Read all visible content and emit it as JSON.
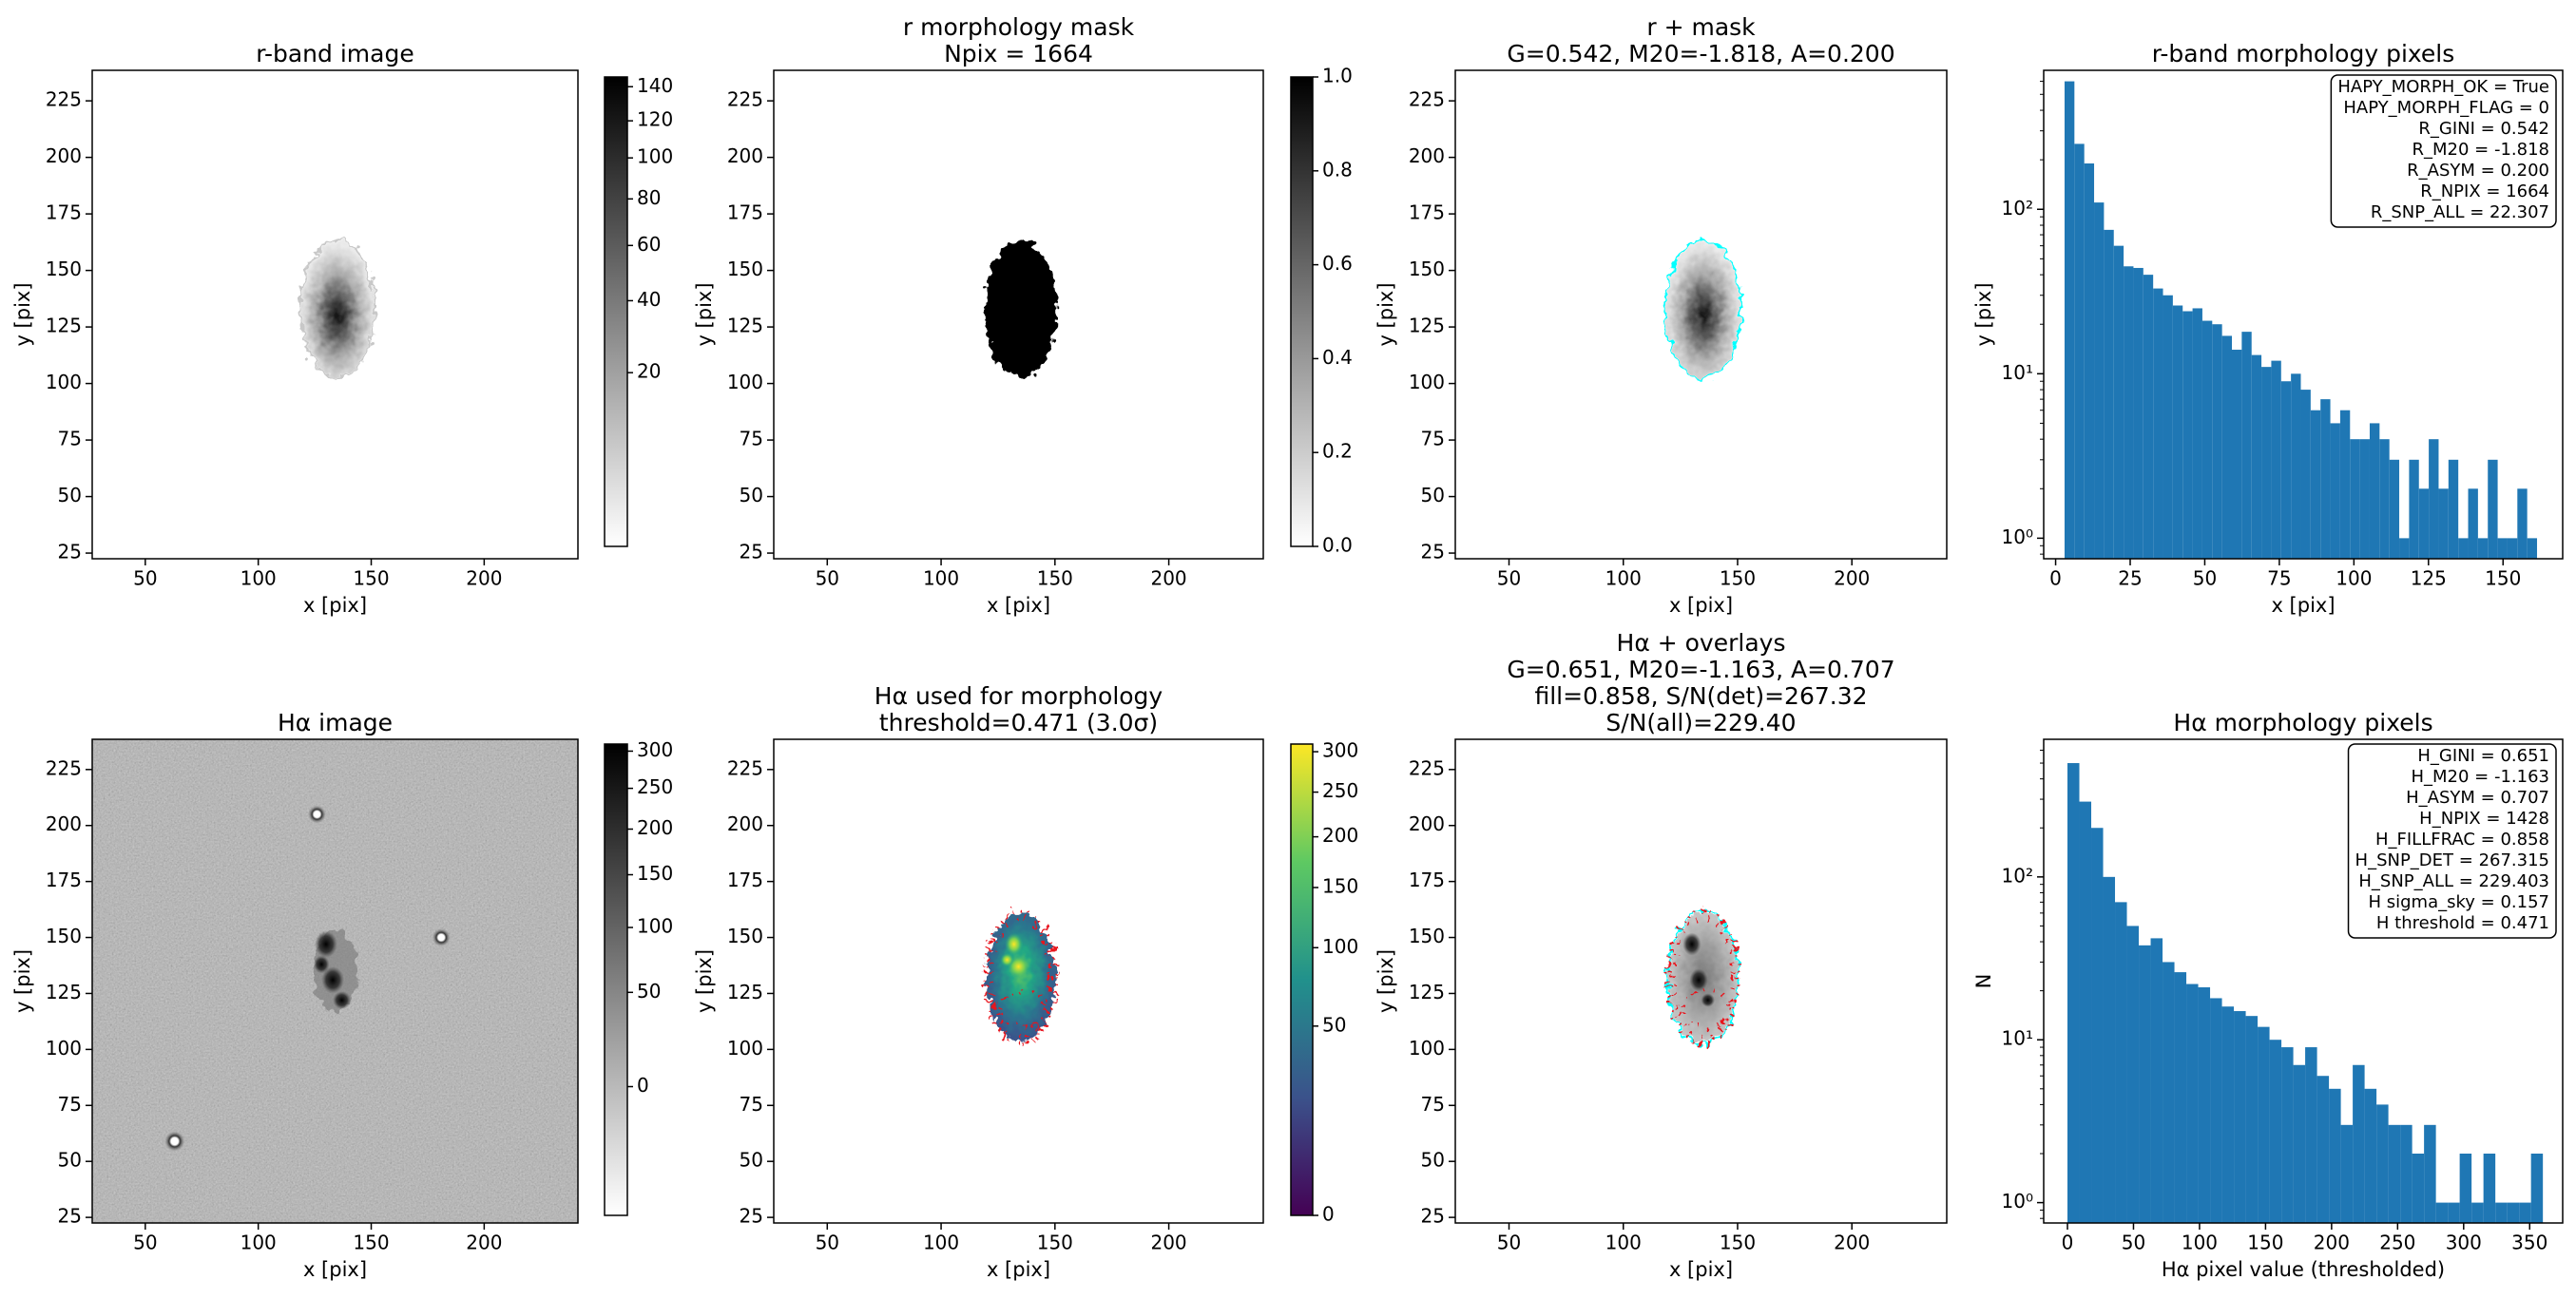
{
  "chart_data": [
    {
      "type": "image",
      "title": [
        "r-band image"
      ],
      "xlabel": "x [pix]",
      "ylabel": "y [pix]",
      "xlim": [
        26.5,
        241.5
      ],
      "ylim": [
        22.5,
        238.5
      ],
      "xticks": [
        50,
        100,
        150,
        200
      ],
      "yticks": [
        25,
        50,
        75,
        100,
        125,
        150,
        175,
        200,
        225
      ],
      "colorbar": {
        "colormap": "gray_r",
        "scale": "sqrt",
        "clim": [
          0,
          146
        ],
        "ticks": [
          20,
          40,
          60,
          80,
          100,
          120,
          140
        ]
      }
    },
    {
      "type": "image",
      "title": [
        "r morphology mask",
        "Npix = 1664"
      ],
      "xlabel": "x [pix]",
      "ylabel": "y [pix]",
      "xlim": [
        26.5,
        241.5
      ],
      "ylim": [
        22.5,
        238.5
      ],
      "xticks": [
        50,
        100,
        150,
        200
      ],
      "yticks": [
        25,
        50,
        75,
        100,
        125,
        150,
        175,
        200,
        225
      ],
      "colorbar": {
        "colormap": "gray_r",
        "scale": "linear",
        "clim": [
          0,
          1
        ],
        "ticks": [
          {
            "value": 0,
            "label": "0.0"
          },
          0.2,
          0.4,
          0.6,
          0.8,
          {
            "value": 1,
            "label": "1.0"
          }
        ]
      }
    },
    {
      "type": "image",
      "title": [
        "r + mask",
        "G=0.542, M20=-1.818, A=0.200"
      ],
      "xlabel": "x [pix]",
      "ylabel": "y [pix]",
      "xlim": [
        26.5,
        241.5
      ],
      "ylim": [
        22.5,
        238.5
      ],
      "xticks": [
        50,
        100,
        150,
        200
      ],
      "yticks": [
        25,
        50,
        75,
        100,
        125,
        150,
        175,
        200,
        225
      ]
    },
    {
      "type": "histogram",
      "title": [
        "r-band morphology pixels"
      ],
      "xlabel": "x [pix]",
      "ylabel": "y [pix]",
      "color": "#1f77b4",
      "log": true,
      "xlim": [
        -4,
        170
      ],
      "ylim": [
        0.75,
        700
      ],
      "xticks": [
        0,
        25,
        50,
        75,
        100,
        125,
        150
      ],
      "yticks": [
        {
          "value": 1,
          "label": "10⁰"
        },
        {
          "value": 10,
          "label": "10¹"
        },
        {
          "value": 100,
          "label": "10²"
        }
      ],
      "bins": [
        3.0,
        6.3,
        9.6,
        12.9,
        16.2,
        19.5,
        22.8,
        26.1,
        29.4,
        32.7,
        36.0,
        39.3,
        42.6,
        45.9,
        49.2,
        52.5,
        55.8,
        59.1,
        62.4,
        65.7,
        69.0,
        72.3,
        75.6,
        78.9,
        82.2,
        85.5,
        88.8,
        92.1,
        95.4,
        98.7,
        102.0,
        105.3,
        108.6,
        111.9,
        115.2,
        118.5,
        121.8,
        125.1,
        128.4,
        131.7,
        135.0,
        138.3,
        141.6,
        144.9,
        148.2,
        151.5,
        154.8,
        158.1,
        161.4
      ],
      "counts": [
        600,
        250,
        190,
        110,
        75,
        60,
        45,
        44,
        40,
        33,
        30,
        26,
        24,
        25,
        21,
        20,
        17,
        14,
        18,
        13,
        11,
        12,
        9,
        10,
        8,
        6,
        7,
        5,
        6,
        4,
        4,
        5,
        4,
        3,
        1,
        3,
        2,
        4,
        2,
        3,
        1,
        2,
        1,
        3,
        1,
        1,
        2,
        1
      ],
      "annotation": [
        "HAPY_MORPH_OK = True",
        "HAPY_MORPH_FLAG = 0",
        "R_GINI = 0.542",
        "R_M20 = -1.818",
        "R_ASYM = 0.200",
        "R_NPIX = 1664",
        "R_SNP_ALL = 22.307"
      ]
    },
    {
      "type": "image",
      "title": [
        "Hα image"
      ],
      "xlabel": "x [pix]",
      "ylabel": "y [pix]",
      "xlim": [
        26.5,
        241.5
      ],
      "ylim": [
        22.5,
        238.5
      ],
      "xticks": [
        50,
        100,
        150,
        200
      ],
      "yticks": [
        25,
        50,
        75,
        100,
        125,
        150,
        175,
        200,
        225
      ],
      "colorbar": {
        "colormap": "gray_r",
        "scale": "sqrt",
        "clim": [
          -25,
          310
        ],
        "ticks": [
          0,
          50,
          100,
          150,
          200,
          250,
          300
        ]
      }
    },
    {
      "type": "image",
      "title": [
        "Hα used for morphology",
        "threshold=0.471 (3.0σ)"
      ],
      "xlabel": "x [pix]",
      "ylabel": "y [pix]",
      "xlim": [
        26.5,
        241.5
      ],
      "ylim": [
        22.5,
        238.5
      ],
      "xticks": [
        50,
        100,
        150,
        200
      ],
      "yticks": [
        25,
        50,
        75,
        100,
        125,
        150,
        175,
        200,
        225
      ],
      "colorbar": {
        "colormap": "viridis",
        "scale": "sqrt",
        "clim": [
          0,
          310
        ],
        "ticks": [
          0,
          50,
          100,
          150,
          200,
          250,
          300
        ]
      }
    },
    {
      "type": "image",
      "title": [
        "Hα + overlays",
        "G=0.651, M20=-1.163, A=0.707",
        "fill=0.858, S/N(det)=267.32",
        "S/N(all)=229.40"
      ],
      "xlabel": "x [pix]",
      "ylabel": "y [pix]",
      "xlim": [
        26.5,
        241.5
      ],
      "ylim": [
        22.5,
        238.5
      ],
      "xticks": [
        50,
        100,
        150,
        200
      ],
      "yticks": [
        25,
        50,
        75,
        100,
        125,
        150,
        175,
        200,
        225
      ]
    },
    {
      "type": "histogram",
      "title": [
        "Hα morphology pixels"
      ],
      "xlabel": "Hα pixel value (thresholded)",
      "ylabel": "N",
      "color": "#1f77b4",
      "log": true,
      "xlim": [
        -18,
        375
      ],
      "ylim": [
        0.75,
        700
      ],
      "xticks": [
        0,
        50,
        100,
        150,
        200,
        250,
        300,
        350
      ],
      "yticks": [
        {
          "value": 1,
          "label": "10⁰"
        },
        {
          "value": 10,
          "label": "10¹"
        },
        {
          "value": 100,
          "label": "10²"
        }
      ],
      "bins": [
        0,
        9,
        18,
        27,
        36,
        45,
        54,
        63,
        72,
        81,
        90,
        99,
        108,
        117,
        126,
        135,
        144,
        153,
        162,
        171,
        180,
        189,
        198,
        207,
        216,
        225,
        234,
        243,
        252,
        261,
        270,
        279,
        288,
        297,
        306,
        315,
        324,
        333,
        342,
        351,
        360
      ],
      "counts": [
        500,
        290,
        200,
        100,
        70,
        50,
        38,
        42,
        30,
        26,
        22,
        21,
        18,
        16,
        15,
        14,
        12,
        10,
        9,
        7,
        9,
        6,
        5,
        3,
        7,
        5,
        4,
        3,
        3,
        2,
        3,
        1,
        1,
        2,
        1,
        2,
        1,
        1,
        1,
        2
      ],
      "annotation": [
        "H_GINI = 0.651",
        "H_M20 = -1.163",
        "H_ASYM = 0.707",
        "H_NPIX = 1428",
        "H_FILLFRAC = 0.858",
        "H_SNP_DET = 267.315",
        "H_SNP_ALL = 229.403",
        "H sigma_sky = 0.157",
        "H threshold = 0.471"
      ]
    }
  ]
}
